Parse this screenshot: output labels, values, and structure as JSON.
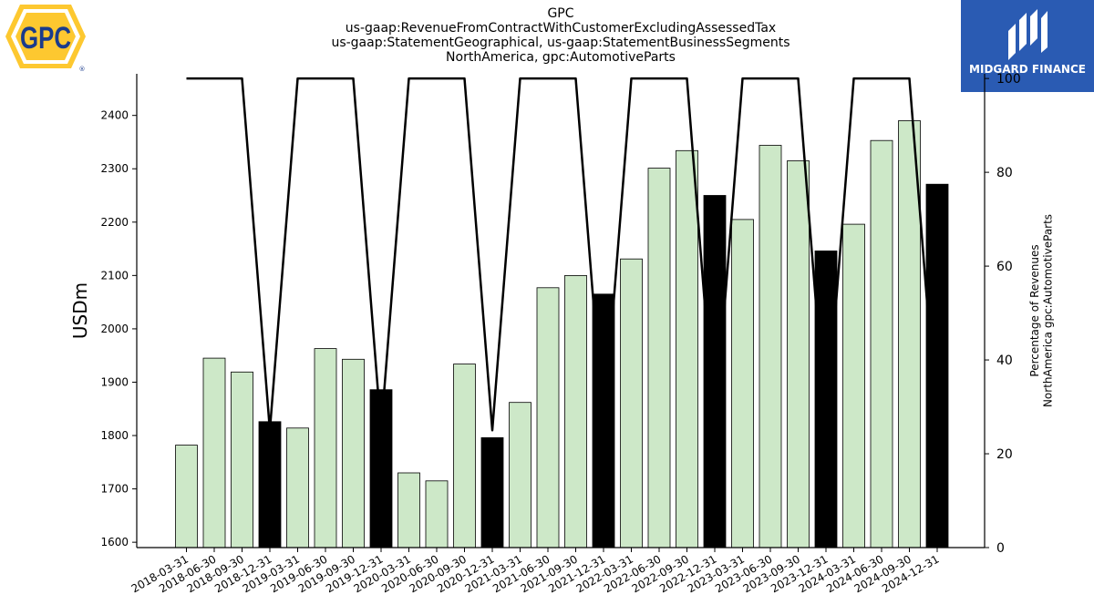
{
  "header": {
    "title_lines": [
      "GPC",
      "us-gaap:RevenueFromContractWithCustomerExcludingAssessedTax",
      "us-gaap:StatementGeographical, us-gaap:StatementBusinessSegments",
      "NorthAmerica, gpc:AutomotiveParts"
    ]
  },
  "logos": {
    "left": {
      "text": "GPC",
      "registered": "®",
      "colors": {
        "badge": "#fdc830",
        "inner": "#ffffff",
        "text": "#1a3b8c"
      }
    },
    "right": {
      "text": "MIDGARD FINANCE",
      "colors": {
        "background": "#2a5bb3",
        "mark": "#ffffff"
      }
    }
  },
  "chart_data": {
    "type": "bar",
    "categories": [
      "2018-03-31",
      "2018-06-30",
      "2018-09-30",
      "2018-12-31",
      "2019-03-31",
      "2019-06-30",
      "2019-09-30",
      "2019-12-31",
      "2020-03-31",
      "2020-06-30",
      "2020-09-30",
      "2020-12-31",
      "2021-03-31",
      "2021-06-30",
      "2021-09-30",
      "2021-12-31",
      "2022-03-31",
      "2022-06-30",
      "2022-09-30",
      "2022-12-31",
      "2023-03-31",
      "2023-06-30",
      "2023-09-30",
      "2023-12-31",
      "2024-03-31",
      "2024-06-30",
      "2024-09-30",
      "2024-12-31"
    ],
    "series": [
      {
        "values": [
          1782,
          1945,
          1919,
          1826,
          1814,
          1963,
          1943,
          1886,
          1730,
          1715,
          1934,
          1796,
          1862,
          2077,
          2100,
          2065,
          2131,
          2301,
          2334,
          2250,
          2205,
          2344,
          2315,
          2146,
          2196,
          2353,
          2390,
          2271
        ],
        "axis": "left",
        "colors": {
          "normal": "#cde8c8",
          "year_end": "#000000"
        }
      },
      {
        "values": [
          100,
          100,
          100,
          25,
          100,
          100,
          100,
          25,
          100,
          100,
          100,
          25,
          100,
          100,
          100,
          25,
          100,
          100,
          100,
          25,
          100,
          100,
          100,
          25,
          100,
          100,
          100,
          25
        ],
        "axis": "right",
        "type": "line",
        "color": "#000000"
      }
    ],
    "ylabel": "USDm",
    "ylabel_right": "Percentage of Revenues\nNorthAmerica gpc:AutomotiveParts",
    "ylim": [
      1590,
      2478
    ],
    "ylim_right": [
      0,
      101
    ],
    "yticks": [
      1600,
      1700,
      1800,
      1900,
      2000,
      2100,
      2200,
      2300,
      2400
    ],
    "yticks_right": [
      0,
      20,
      40,
      60,
      80,
      100
    ],
    "grid": false,
    "legend": "none"
  }
}
